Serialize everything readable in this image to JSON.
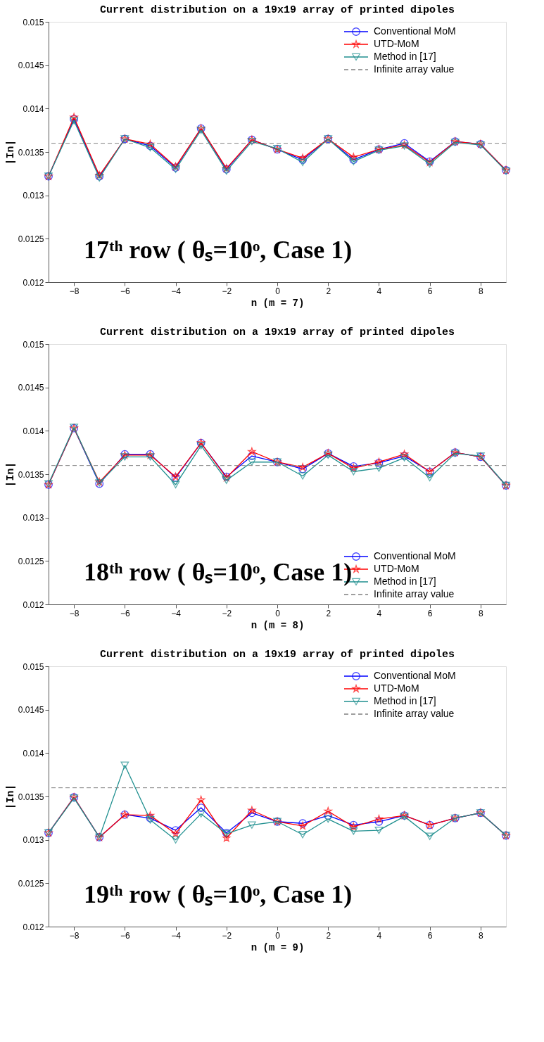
{
  "chart_data": [
    {
      "type": "line",
      "title": "Current distribution on a 19x19 array of printed dipoles",
      "xlabel": "n  (m = 7)",
      "ylabel": "|In|",
      "annotations": [
        "17ᵗʰ row ( θₛ=10ᵒ, Case 1)"
      ],
      "legend": "top right",
      "x": [
        -9,
        -8,
        -7,
        -6,
        -5,
        -4,
        -3,
        -2,
        -1,
        0,
        1,
        2,
        3,
        4,
        5,
        6,
        7,
        8,
        9
      ],
      "series": [
        {
          "name": "Conventional MoM",
          "color": "#0000ff",
          "marker": "circle",
          "values": [
            0.01322,
            0.01388,
            0.01322,
            0.01365,
            0.01357,
            0.01332,
            0.01377,
            0.0133,
            0.01364,
            0.01353,
            0.01341,
            0.01365,
            0.01341,
            0.01353,
            0.0136,
            0.01339,
            0.01362,
            0.01359,
            0.01329
          ]
        },
        {
          "name": "UTD-MoM",
          "color": "#ff0000",
          "marker": "star",
          "values": [
            0.01322,
            0.0139,
            0.01323,
            0.01365,
            0.01359,
            0.01333,
            0.01377,
            0.01331,
            0.01364,
            0.01353,
            0.01343,
            0.01365,
            0.01344,
            0.01353,
            0.01358,
            0.01338,
            0.01362,
            0.01359,
            0.01329
          ]
        },
        {
          "name": "Method in [17]",
          "color": "#1f8f8f",
          "marker": "triangle",
          "values": [
            0.01322,
            0.01386,
            0.0132,
            0.01365,
            0.01355,
            0.0133,
            0.01375,
            0.01328,
            0.01362,
            0.01354,
            0.01338,
            0.01365,
            0.01339,
            0.01352,
            0.01357,
            0.01336,
            0.01361,
            0.01358,
            0.01328
          ]
        }
      ],
      "ref_lines": [
        {
          "axis": "y",
          "value": 0.0136,
          "label": "Infinite array value",
          "color": "#808080",
          "line_style": "dashed"
        }
      ],
      "xlim": [
        -9,
        9
      ],
      "xticks": [
        -8,
        -6,
        -4,
        -2,
        0,
        2,
        4,
        6,
        8
      ],
      "ylim": [
        0.012,
        0.015
      ],
      "yticks": [
        0.012,
        0.0125,
        0.013,
        0.0135,
        0.014,
        0.0145,
        0.015
      ]
    },
    {
      "type": "line",
      "title": "Current distribution on a 19x19 array of printed dipoles",
      "xlabel": "n  (m = 8)",
      "ylabel": "|In|",
      "annotations": [
        "18ᵗʰ row ( θₛ=10ᵒ, Case 1)"
      ],
      "legend": "bottom right",
      "x": [
        -9,
        -8,
        -7,
        -6,
        -5,
        -4,
        -3,
        -2,
        -1,
        0,
        1,
        2,
        3,
        4,
        5,
        6,
        7,
        8,
        9
      ],
      "series": [
        {
          "name": "Conventional MoM",
          "color": "#0000ff",
          "marker": "circle",
          "values": [
            0.01338,
            0.01403,
            0.01339,
            0.01373,
            0.01373,
            0.01346,
            0.01386,
            0.01347,
            0.01371,
            0.01364,
            0.01356,
            0.01374,
            0.01359,
            0.01363,
            0.01371,
            0.01353,
            0.01375,
            0.0137,
            0.01337
          ]
        },
        {
          "name": "UTD-MoM",
          "color": "#ff0000",
          "marker": "star",
          "values": [
            0.01338,
            0.01403,
            0.01341,
            0.01372,
            0.01372,
            0.01347,
            0.01386,
            0.01346,
            0.01376,
            0.01364,
            0.01358,
            0.01374,
            0.01357,
            0.01364,
            0.01373,
            0.01353,
            0.01375,
            0.0137,
            0.01337
          ]
        },
        {
          "name": "Method in [17]",
          "color": "#1f8f8f",
          "marker": "triangle",
          "values": [
            0.01339,
            0.01404,
            0.0134,
            0.0137,
            0.0137,
            0.01338,
            0.01383,
            0.01343,
            0.01364,
            0.01364,
            0.01348,
            0.01372,
            0.01353,
            0.01357,
            0.01369,
            0.01346,
            0.01374,
            0.01371,
            0.01337
          ]
        }
      ],
      "ref_lines": [
        {
          "axis": "y",
          "value": 0.0136,
          "label": "Infinite array value",
          "color": "#808080",
          "line_style": "dashed"
        }
      ],
      "xlim": [
        -9,
        9
      ],
      "xticks": [
        -8,
        -6,
        -4,
        -2,
        0,
        2,
        4,
        6,
        8
      ],
      "ylim": [
        0.012,
        0.015
      ],
      "yticks": [
        0.012,
        0.0125,
        0.013,
        0.0135,
        0.014,
        0.0145,
        0.015
      ]
    },
    {
      "type": "line",
      "title": "Current distribution on a 19x19 array of printed dipoles",
      "xlabel": "n  (m = 9)",
      "ylabel": "|In|",
      "annotations": [
        "19ᵗʰ row ( θₛ=10ᵒ, Case 1)"
      ],
      "legend": "top right",
      "x": [
        -9,
        -8,
        -7,
        -6,
        -5,
        -4,
        -3,
        -2,
        -1,
        0,
        1,
        2,
        3,
        4,
        5,
        6,
        7,
        8,
        9
      ],
      "series": [
        {
          "name": "Conventional MoM",
          "color": "#0000ff",
          "marker": "circle",
          "values": [
            0.01308,
            0.01349,
            0.01303,
            0.01329,
            0.01325,
            0.01311,
            0.01337,
            0.01308,
            0.01331,
            0.01321,
            0.01319,
            0.01328,
            0.01317,
            0.01321,
            0.01328,
            0.01317,
            0.01325,
            0.01331,
            0.01305
          ]
        },
        {
          "name": "UTD-MoM",
          "color": "#ff0000",
          "marker": "star",
          "values": [
            0.01308,
            0.01349,
            0.01303,
            0.01329,
            0.01328,
            0.01307,
            0.01346,
            0.01302,
            0.01334,
            0.01321,
            0.01316,
            0.01333,
            0.01315,
            0.01324,
            0.01328,
            0.01317,
            0.01325,
            0.01331,
            0.01305
          ]
        },
        {
          "name": "Method in [17]",
          "color": "#1f8f8f",
          "marker": "triangle",
          "values": [
            0.01308,
            0.01348,
            0.01303,
            0.01386,
            0.01323,
            0.013,
            0.0133,
            0.01307,
            0.01317,
            0.01321,
            0.01306,
            0.01324,
            0.0131,
            0.01311,
            0.01327,
            0.01304,
            0.01325,
            0.01331,
            0.01305
          ]
        }
      ],
      "ref_lines": [
        {
          "axis": "y",
          "value": 0.0136,
          "label": "Infinite array value",
          "color": "#808080",
          "line_style": "dashed"
        }
      ],
      "xlim": [
        -9,
        9
      ],
      "xticks": [
        -8,
        -6,
        -4,
        -2,
        0,
        2,
        4,
        6,
        8
      ],
      "ylim": [
        0.012,
        0.015
      ],
      "yticks": [
        0.012,
        0.0125,
        0.013,
        0.0135,
        0.014,
        0.0145,
        0.015
      ]
    }
  ]
}
